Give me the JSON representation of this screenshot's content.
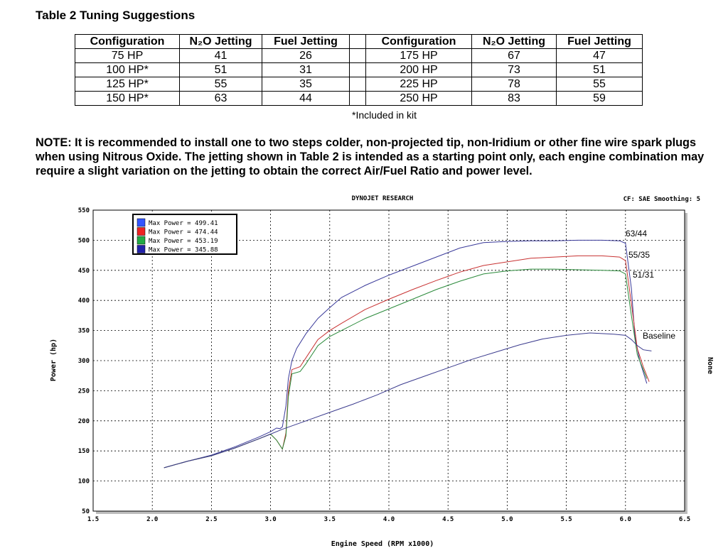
{
  "doc": {
    "table_title": "Table 2  Tuning Suggestions",
    "headers": [
      "Configuration",
      "N₂O Jetting",
      "Fuel Jetting",
      "Configuration",
      "N₂O Jetting",
      "Fuel Jetting"
    ],
    "rows": [
      {
        "cfg_a": "75 HP",
        "n2o_a": "41",
        "fuel_a": "26",
        "cfg_b": "175 HP",
        "n2o_b": "67",
        "fuel_b": "47"
      },
      {
        "cfg_a": "100 HP*",
        "n2o_a": "51",
        "fuel_a": "31",
        "cfg_b": "200 HP",
        "n2o_b": "73",
        "fuel_b": "51"
      },
      {
        "cfg_a": "125 HP*",
        "n2o_a": "55",
        "fuel_a": "35",
        "cfg_b": "225 HP",
        "n2o_b": "78",
        "fuel_b": "55"
      },
      {
        "cfg_a": "150 HP*",
        "n2o_a": "63",
        "fuel_a": "44",
        "cfg_b": "250 HP",
        "n2o_b": "83",
        "fuel_b": "59"
      }
    ],
    "footnote": "*Included in kit",
    "note": "NOTE:  It is recommended to install one to two steps colder, non-projected tip, non-Iridium or other fine wire spark plugs when using Nitrous Oxide. The jetting shown in Table 2 is intended as a starting point only, each engine combination may require a slight variation on the jetting to obtain the correct Air/Fuel Ratio and power level."
  },
  "chart_data": {
    "type": "line",
    "title": "DYNOJET RESEARCH",
    "subtitle": "CF: SAE  Smoothing: 5",
    "xlabel": "Engine Speed (RPM x1000)",
    "ylabel": "Power (hp)",
    "right_label": "None",
    "xlim": [
      1.5,
      6.5
    ],
    "ylim": [
      50,
      550
    ],
    "x_ticks": [
      "1.5",
      "2.0",
      "2.5",
      "3.0",
      "3.5",
      "4.0",
      "4.5",
      "5.0",
      "5.5",
      "6.0",
      "6.5"
    ],
    "y_ticks": [
      "50",
      "100",
      "150",
      "200",
      "250",
      "300",
      "350",
      "400",
      "450",
      "500",
      "550"
    ],
    "grid": true,
    "legend_position": "top-left",
    "series": [
      {
        "name": "Max Power = 499.41",
        "color": "#3a3a9a",
        "label": "63/44",
        "points": [
          [
            2.1,
            122
          ],
          [
            2.3,
            133
          ],
          [
            2.5,
            143
          ],
          [
            2.7,
            157
          ],
          [
            2.9,
            173
          ],
          [
            3.0,
            182
          ],
          [
            3.05,
            188
          ],
          [
            3.08,
            187
          ],
          [
            3.1,
            190
          ],
          [
            3.13,
            225
          ],
          [
            3.15,
            270
          ],
          [
            3.18,
            300
          ],
          [
            3.22,
            320
          ],
          [
            3.3,
            345
          ],
          [
            3.4,
            370
          ],
          [
            3.5,
            388
          ],
          [
            3.6,
            405
          ],
          [
            3.8,
            425
          ],
          [
            4.0,
            442
          ],
          [
            4.2,
            457
          ],
          [
            4.4,
            472
          ],
          [
            4.6,
            487
          ],
          [
            4.8,
            496
          ],
          [
            5.0,
            498
          ],
          [
            5.2,
            499
          ],
          [
            5.4,
            499
          ],
          [
            5.6,
            500
          ],
          [
            5.8,
            500
          ],
          [
            5.95,
            499
          ],
          [
            6.0,
            495
          ],
          [
            6.05,
            420
          ],
          [
            6.08,
            340
          ],
          [
            6.12,
            300
          ],
          [
            6.18,
            262
          ]
        ]
      },
      {
        "name": "Max Power = 474.44",
        "color": "#c83232",
        "label": "55/35",
        "points": [
          [
            2.1,
            122
          ],
          [
            2.3,
            133
          ],
          [
            2.5,
            142
          ],
          [
            2.7,
            155
          ],
          [
            2.9,
            170
          ],
          [
            3.0,
            178
          ],
          [
            3.05,
            168
          ],
          [
            3.1,
            153
          ],
          [
            3.13,
            180
          ],
          [
            3.15,
            250
          ],
          [
            3.18,
            285
          ],
          [
            3.25,
            290
          ],
          [
            3.3,
            305
          ],
          [
            3.4,
            335
          ],
          [
            3.5,
            350
          ],
          [
            3.6,
            362
          ],
          [
            3.8,
            385
          ],
          [
            4.0,
            402
          ],
          [
            4.2,
            418
          ],
          [
            4.4,
            433
          ],
          [
            4.6,
            447
          ],
          [
            4.8,
            458
          ],
          [
            5.0,
            464
          ],
          [
            5.2,
            470
          ],
          [
            5.4,
            472
          ],
          [
            5.6,
            474
          ],
          [
            5.8,
            474
          ],
          [
            5.95,
            472
          ],
          [
            6.0,
            466
          ],
          [
            6.05,
            395
          ],
          [
            6.1,
            320
          ],
          [
            6.15,
            290
          ],
          [
            6.2,
            265
          ]
        ]
      },
      {
        "name": "Max Power = 453.19",
        "color": "#2a8a3a",
        "label": "51/31",
        "points": [
          [
            2.1,
            122
          ],
          [
            2.3,
            133
          ],
          [
            2.5,
            142
          ],
          [
            2.7,
            155
          ],
          [
            2.9,
            170
          ],
          [
            3.0,
            178
          ],
          [
            3.05,
            168
          ],
          [
            3.1,
            153
          ],
          [
            3.13,
            175
          ],
          [
            3.15,
            240
          ],
          [
            3.18,
            278
          ],
          [
            3.25,
            282
          ],
          [
            3.3,
            295
          ],
          [
            3.4,
            325
          ],
          [
            3.5,
            340
          ],
          [
            3.6,
            350
          ],
          [
            3.8,
            370
          ],
          [
            4.0,
            386
          ],
          [
            4.2,
            402
          ],
          [
            4.4,
            418
          ],
          [
            4.6,
            432
          ],
          [
            4.8,
            444
          ],
          [
            5.0,
            449
          ],
          [
            5.2,
            452
          ],
          [
            5.4,
            452
          ],
          [
            5.6,
            451
          ],
          [
            5.8,
            450
          ],
          [
            5.95,
            449
          ],
          [
            6.0,
            444
          ],
          [
            6.05,
            375
          ],
          [
            6.1,
            310
          ],
          [
            6.15,
            285
          ],
          [
            6.18,
            270
          ]
        ]
      },
      {
        "name": "Max Power = 345.88",
        "color": "#3b3b8e",
        "label": "Baseline",
        "points": [
          [
            2.1,
            122
          ],
          [
            2.3,
            133
          ],
          [
            2.5,
            142
          ],
          [
            2.7,
            155
          ],
          [
            2.9,
            170
          ],
          [
            3.0,
            178
          ],
          [
            3.1,
            186
          ],
          [
            3.3,
            200
          ],
          [
            3.5,
            214
          ],
          [
            3.7,
            228
          ],
          [
            3.9,
            243
          ],
          [
            4.1,
            260
          ],
          [
            4.3,
            274
          ],
          [
            4.5,
            288
          ],
          [
            4.7,
            302
          ],
          [
            4.9,
            314
          ],
          [
            5.1,
            326
          ],
          [
            5.3,
            336
          ],
          [
            5.5,
            342
          ],
          [
            5.7,
            346
          ],
          [
            5.9,
            344
          ],
          [
            6.0,
            342
          ],
          [
            6.05,
            335
          ],
          [
            6.1,
            325
          ],
          [
            6.15,
            318
          ],
          [
            6.22,
            316
          ]
        ]
      }
    ]
  }
}
